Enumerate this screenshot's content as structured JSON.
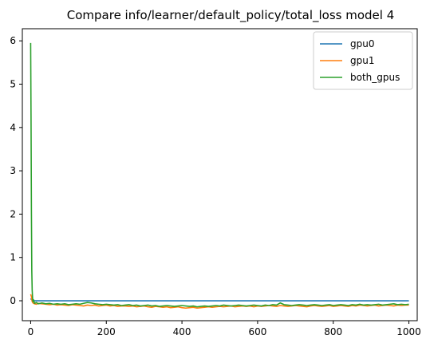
{
  "chart_data": {
    "type": "line",
    "title": "Compare info/learner/default_policy/total_loss model 4",
    "xlabel": "",
    "ylabel": "",
    "xlim": [
      -22,
      1022
    ],
    "ylim": [
      -0.46,
      6.28
    ],
    "xticks": [
      0,
      200,
      400,
      600,
      800,
      1000
    ],
    "yticks": [
      0,
      1,
      2,
      3,
      4,
      5,
      6
    ],
    "xtick_labels": [
      "0",
      "200",
      "400",
      "600",
      "800",
      "1000"
    ],
    "ytick_labels": [
      "0",
      "1",
      "2",
      "3",
      "4",
      "5",
      "6"
    ],
    "grid": false,
    "legend_position": "upper right",
    "series": [
      {
        "name": "gpu0",
        "color": "#1f77b4",
        "x": [
          0,
          2,
          4,
          6,
          8,
          12,
          20,
          50,
          100,
          200,
          300,
          400,
          500,
          600,
          700,
          800,
          900,
          1000
        ],
        "y": [
          0.05,
          0.03,
          0.02,
          0.01,
          0.0,
          0.0,
          0.0,
          0.0,
          0.0,
          0.0,
          0.0,
          0.0,
          0.0,
          0.0,
          0.0,
          0.0,
          0.0,
          0.0
        ]
      },
      {
        "name": "gpu1",
        "color": "#ff7f0e",
        "x": [
          0,
          2,
          4,
          6,
          8,
          10,
          15,
          20,
          30,
          40,
          50,
          60,
          70,
          80,
          90,
          100,
          110,
          120,
          130,
          140,
          150,
          160,
          170,
          180,
          190,
          200,
          210,
          220,
          230,
          240,
          250,
          260,
          270,
          280,
          290,
          300,
          310,
          320,
          330,
          340,
          350,
          360,
          370,
          380,
          390,
          400,
          410,
          420,
          430,
          440,
          450,
          460,
          470,
          480,
          490,
          500,
          510,
          520,
          530,
          540,
          550,
          560,
          570,
          580,
          590,
          600,
          610,
          620,
          630,
          640,
          650,
          660,
          670,
          680,
          690,
          700,
          710,
          720,
          730,
          740,
          750,
          760,
          770,
          780,
          790,
          800,
          810,
          820,
          830,
          840,
          850,
          860,
          870,
          880,
          890,
          900,
          910,
          920,
          930,
          940,
          950,
          960,
          970,
          980,
          990,
          1000
        ],
        "y": [
          0.15,
          0.1,
          -0.02,
          -0.05,
          -0.06,
          -0.07,
          -0.08,
          -0.06,
          -0.07,
          -0.08,
          -0.09,
          -0.08,
          -0.1,
          -0.09,
          -0.1,
          -0.11,
          -0.09,
          -0.1,
          -0.11,
          -0.12,
          -0.1,
          -0.11,
          -0.1,
          -0.12,
          -0.11,
          -0.1,
          -0.12,
          -0.11,
          -0.13,
          -0.12,
          -0.12,
          -0.13,
          -0.12,
          -0.14,
          -0.13,
          -0.12,
          -0.14,
          -0.15,
          -0.13,
          -0.14,
          -0.15,
          -0.14,
          -0.16,
          -0.15,
          -0.14,
          -0.16,
          -0.17,
          -0.16,
          -0.15,
          -0.17,
          -0.16,
          -0.15,
          -0.14,
          -0.15,
          -0.14,
          -0.13,
          -0.14,
          -0.13,
          -0.12,
          -0.14,
          -0.13,
          -0.12,
          -0.13,
          -0.12,
          -0.14,
          -0.12,
          -0.13,
          -0.12,
          -0.11,
          -0.12,
          -0.13,
          -0.11,
          -0.12,
          -0.13,
          -0.12,
          -0.11,
          -0.12,
          -0.13,
          -0.14,
          -0.12,
          -0.11,
          -0.12,
          -0.13,
          -0.12,
          -0.11,
          -0.13,
          -0.12,
          -0.11,
          -0.12,
          -0.13,
          -0.11,
          -0.12,
          -0.1,
          -0.11,
          -0.12,
          -0.11,
          -0.1,
          -0.12,
          -0.11,
          -0.1,
          -0.11,
          -0.12,
          -0.1,
          -0.11,
          -0.1,
          -0.1
        ]
      },
      {
        "name": "both_gpus",
        "color": "#2ca02c",
        "x": [
          0,
          1,
          2,
          3,
          4,
          5,
          6,
          8,
          10,
          15,
          20,
          30,
          40,
          50,
          60,
          70,
          80,
          90,
          100,
          110,
          120,
          130,
          140,
          150,
          160,
          170,
          180,
          190,
          200,
          210,
          220,
          230,
          240,
          250,
          260,
          270,
          280,
          290,
          300,
          310,
          320,
          330,
          340,
          350,
          360,
          370,
          380,
          390,
          400,
          410,
          420,
          430,
          440,
          450,
          460,
          470,
          480,
          490,
          500,
          510,
          520,
          530,
          540,
          550,
          560,
          570,
          580,
          590,
          600,
          610,
          620,
          630,
          640,
          650,
          660,
          670,
          680,
          690,
          700,
          710,
          720,
          730,
          740,
          750,
          760,
          770,
          780,
          790,
          800,
          810,
          820,
          830,
          840,
          850,
          860,
          870,
          880,
          890,
          900,
          910,
          920,
          930,
          940,
          950,
          960,
          970,
          980,
          990,
          1000
        ],
        "y": [
          5.95,
          4.2,
          2.1,
          0.7,
          0.25,
          0.08,
          -0.02,
          0.02,
          -0.06,
          -0.04,
          -0.07,
          -0.05,
          -0.07,
          -0.06,
          -0.08,
          -0.07,
          -0.08,
          -0.07,
          -0.09,
          -0.08,
          -0.07,
          -0.08,
          -0.06,
          -0.04,
          -0.05,
          -0.07,
          -0.08,
          -0.09,
          -0.08,
          -0.09,
          -0.1,
          -0.09,
          -0.11,
          -0.1,
          -0.09,
          -0.11,
          -0.1,
          -0.12,
          -0.11,
          -0.1,
          -0.12,
          -0.11,
          -0.13,
          -0.12,
          -0.11,
          -0.12,
          -0.13,
          -0.12,
          -0.11,
          -0.12,
          -0.13,
          -0.12,
          -0.14,
          -0.13,
          -0.12,
          -0.13,
          -0.12,
          -0.11,
          -0.12,
          -0.1,
          -0.11,
          -0.12,
          -0.11,
          -0.1,
          -0.11,
          -0.12,
          -0.11,
          -0.1,
          -0.11,
          -0.12,
          -0.1,
          -0.11,
          -0.09,
          -0.1,
          -0.05,
          -0.09,
          -0.1,
          -0.11,
          -0.1,
          -0.09,
          -0.1,
          -0.11,
          -0.1,
          -0.09,
          -0.1,
          -0.11,
          -0.1,
          -0.09,
          -0.11,
          -0.1,
          -0.09,
          -0.1,
          -0.11,
          -0.09,
          -0.1,
          -0.08,
          -0.1,
          -0.09,
          -0.1,
          -0.09,
          -0.08,
          -0.1,
          -0.09,
          -0.08,
          -0.07,
          -0.09,
          -0.08,
          -0.09,
          -0.08
        ]
      }
    ]
  }
}
